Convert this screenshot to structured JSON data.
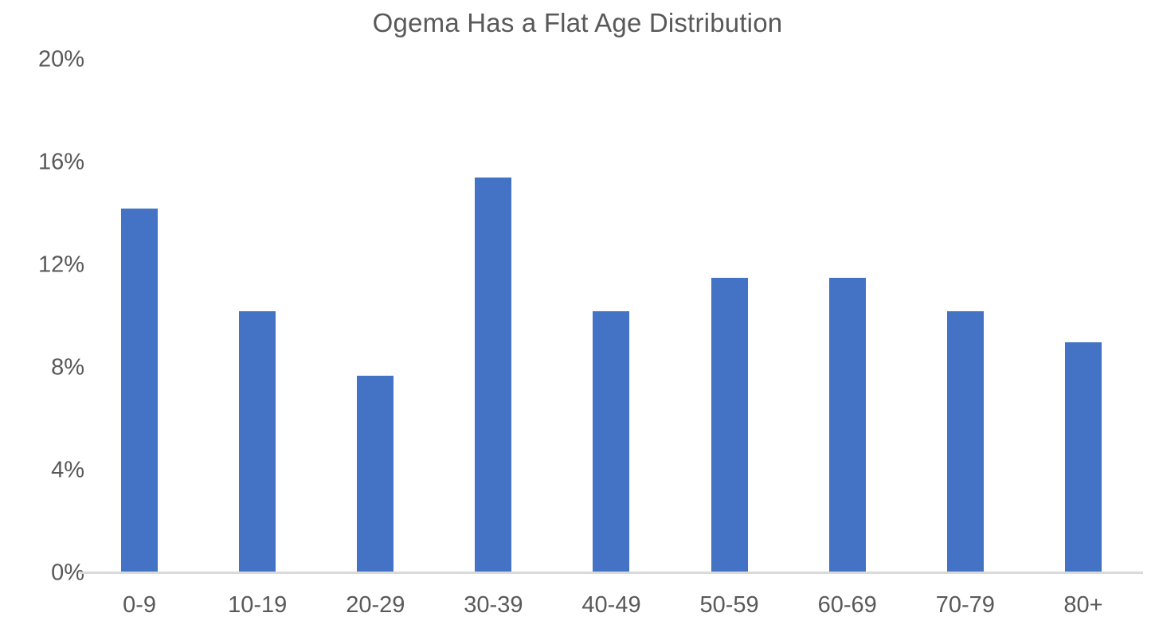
{
  "chart_data": {
    "type": "bar",
    "title": "Ogema Has a Flat Age Distribution",
    "categories": [
      "0-9",
      "10-19",
      "20-29",
      "30-39",
      "40-49",
      "50-59",
      "60-69",
      "70-79",
      "80+"
    ],
    "values": [
      14.2,
      10.2,
      7.7,
      15.4,
      10.2,
      11.5,
      11.5,
      10.2,
      9.0
    ],
    "unit": "%",
    "xlabel": "",
    "ylabel": "",
    "ylim": [
      0,
      20
    ],
    "ytick_labels": [
      "20%",
      "16%",
      "12%",
      "8%",
      "4%",
      "0%"
    ],
    "ytick_values": [
      20,
      16,
      12,
      8,
      4,
      0
    ],
    "grid": false,
    "legend": false,
    "colors": {
      "bar_fill": "#4472C4",
      "text": "#595959",
      "axis_line": "#D9D9D9",
      "background": "#FFFFFF"
    }
  }
}
